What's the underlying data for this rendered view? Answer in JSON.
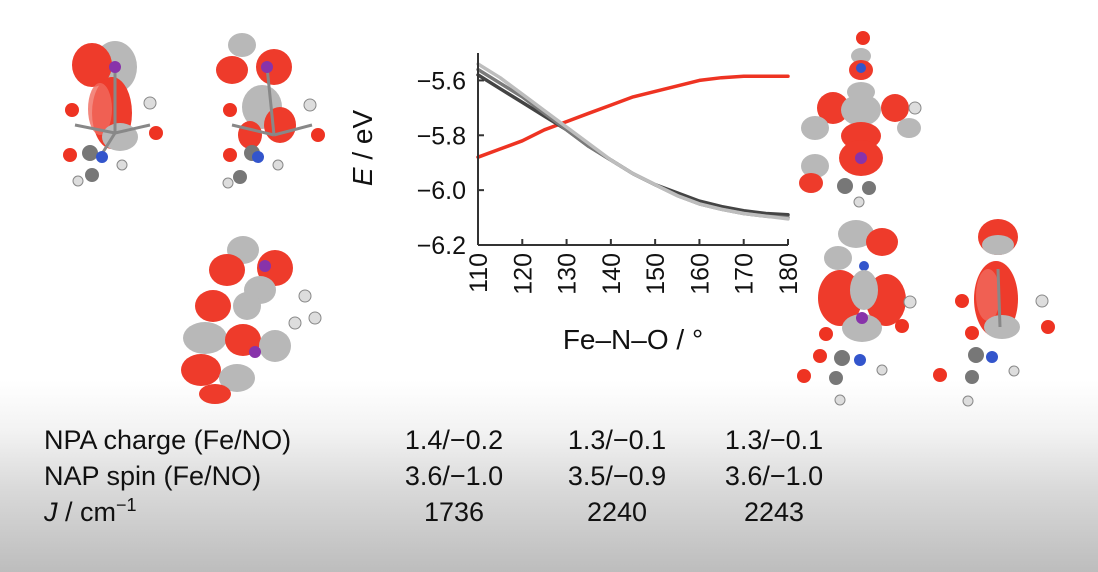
{
  "chart_data": {
    "type": "line",
    "xlabel": "Fe–N–O / °",
    "ylabel_italic": "E",
    "ylabel_unit": " / eV",
    "xlim": [
      110,
      180
    ],
    "ylim": [
      -6.2,
      -5.5
    ],
    "xticks": [
      "110",
      "120",
      "130",
      "140",
      "150",
      "160",
      "170",
      "180"
    ],
    "yticks": [
      "−5.6",
      "−5.8",
      "−6.0",
      "−6.2"
    ],
    "grid": false,
    "x": [
      110,
      115,
      120,
      125,
      130,
      135,
      140,
      145,
      150,
      155,
      160,
      165,
      170,
      175,
      180
    ],
    "series": [
      {
        "color": "#ee3322",
        "values": [
          -5.88,
          -5.85,
          -5.82,
          -5.78,
          -5.75,
          -5.72,
          -5.69,
          -5.66,
          -5.64,
          -5.62,
          -5.6,
          -5.59,
          -5.585,
          -5.585,
          -5.585
        ]
      },
      {
        "color": "#444444",
        "values": [
          -5.58,
          -5.63,
          -5.68,
          -5.73,
          -5.78,
          -5.84,
          -5.89,
          -5.94,
          -5.98,
          -6.01,
          -6.04,
          -6.06,
          -6.075,
          -6.085,
          -6.09
        ]
      },
      {
        "color": "#7a7a7a",
        "values": [
          -5.56,
          -5.61,
          -5.66,
          -5.72,
          -5.78,
          -5.84,
          -5.89,
          -5.94,
          -5.98,
          -6.02,
          -6.05,
          -6.07,
          -6.085,
          -6.095,
          -6.1
        ]
      },
      {
        "color": "#bdbdbd",
        "values": [
          -5.54,
          -5.59,
          -5.65,
          -5.71,
          -5.77,
          -5.83,
          -5.89,
          -5.94,
          -5.98,
          -6.02,
          -6.05,
          -6.07,
          -6.085,
          -6.095,
          -6.105
        ]
      }
    ]
  },
  "table": {
    "rows": [
      {
        "label": "NPA charge (Fe/NO)",
        "values": [
          "1.4/−0.2",
          "1.3/−0.1",
          "1.3/−0.1"
        ]
      },
      {
        "label": "NAP spin (Fe/NO)",
        "values": [
          "3.6/−1.0",
          "3.5/−0.9",
          "3.6/−1.0"
        ]
      }
    ],
    "j_row": {
      "label_italic": "J",
      "label_unit": " / cm",
      "label_sup": "−1",
      "values": [
        "1736",
        "2240",
        "2243"
      ]
    }
  }
}
